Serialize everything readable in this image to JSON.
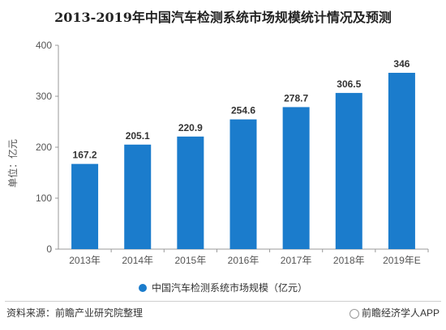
{
  "chart_data": {
    "type": "bar",
    "title": "2013-2019年中国汽车检测系统市场规模统计情况及预测",
    "ylabel": "单位：亿元",
    "categories": [
      "2013年",
      "2014年",
      "2015年",
      "2016年",
      "2017年",
      "2018年",
      "2019年E"
    ],
    "series": [
      {
        "name": "中国汽车检测系统市场规模（亿元）",
        "values": [
          167.2,
          205.1,
          220.9,
          254.6,
          278.7,
          306.5,
          346
        ]
      }
    ],
    "value_labels": [
      "167.2",
      "205.1",
      "220.9",
      "254.6",
      "278.7",
      "306.5",
      "346"
    ],
    "ylim": [
      0,
      400
    ],
    "yticks": [
      0,
      100,
      200,
      300,
      400
    ],
    "grid": false,
    "legend_position": "bottom",
    "bar_color": "#1b7ccc"
  },
  "footer": {
    "source": "资料来源：前瞻产业研究院整理",
    "brand": "前瞻经济学人APP"
  }
}
